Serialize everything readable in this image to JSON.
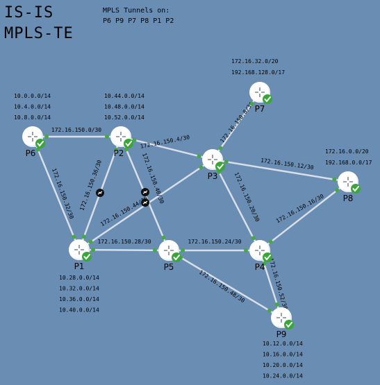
{
  "title": {
    "line1": "IS-IS",
    "line2": "MPLS-TE"
  },
  "tunnels": {
    "heading": "MPLS Tunnels on:",
    "list": "P6 P9 P7 P8 P1 P2"
  },
  "routers": [
    {
      "id": "P6",
      "label": "P6",
      "prefixes": [
        "10.0.0.0/14",
        "10.4.0.0/14",
        "10.8.0.0/14"
      ]
    },
    {
      "id": "P2",
      "label": "P2",
      "prefixes": [
        "10.44.0.0/14",
        "10.48.0.0/14",
        "10.52.0.0/14"
      ]
    },
    {
      "id": "P7",
      "label": "P7",
      "prefixes": [
        "172.16.32.0/20",
        "192.168.128.0/17"
      ]
    },
    {
      "id": "P3",
      "label": "P3",
      "prefixes": []
    },
    {
      "id": "P8",
      "label": "P8",
      "prefixes": [
        "172.16.0.0/20",
        "192.168.0.0/17"
      ]
    },
    {
      "id": "P1",
      "label": "P1",
      "prefixes": [
        "10.28.0.0/14",
        "10.32.0.0/14",
        "10.36.0.0/14",
        "10.40.0.0/14"
      ]
    },
    {
      "id": "P5",
      "label": "P5",
      "prefixes": []
    },
    {
      "id": "P4",
      "label": "P4",
      "prefixes": []
    },
    {
      "id": "P9",
      "label": "P9",
      "prefixes": [
        "10.12.0.0/14",
        "10.16.0.0/14",
        "10.20.0.0/14",
        "10.24.0.0/14"
      ]
    }
  ],
  "links": [
    {
      "from": "P6",
      "to": "P2",
      "subnet": "172.16.150.0/30"
    },
    {
      "from": "P2",
      "to": "P3",
      "subnet": "172.16.150.4/30"
    },
    {
      "from": "P7",
      "to": "P3",
      "subnet": "172.16.150.8/30"
    },
    {
      "from": "P3",
      "to": "P8",
      "subnet": "172.16.150.12/30"
    },
    {
      "from": "P8",
      "to": "P4",
      "subnet": "172.16.150.16/30"
    },
    {
      "from": "P3",
      "to": "P4",
      "subnet": "172.16.150.20/30"
    },
    {
      "from": "P5",
      "to": "P4",
      "subnet": "172.16.150.24/30"
    },
    {
      "from": "P1",
      "to": "P5",
      "subnet": "172.16.150.28/30"
    },
    {
      "from": "P6",
      "to": "P1",
      "subnet": "172.16.150.32/30"
    },
    {
      "from": "P2",
      "to": "P1",
      "subnet": "172.16.150.36/30"
    },
    {
      "from": "P2",
      "to": "P5",
      "subnet": "172.16.150.40/30"
    },
    {
      "from": "P1",
      "to": "P3",
      "subnet": "172.16.150.44/30"
    },
    {
      "from": "P5",
      "to": "P9",
      "subnet": "172.16.150.48/30"
    },
    {
      "from": "P4",
      "to": "P9",
      "subnet": "172.16.150.52/30"
    }
  ],
  "colors": {
    "background": "#6a8db4",
    "link": "#d9dfe6",
    "status_ok": "#3aa63a",
    "router": "#ffffff"
  },
  "icons": {
    "router": "router-icon",
    "status": "checkmark-icon",
    "interface": "interface-icon"
  }
}
